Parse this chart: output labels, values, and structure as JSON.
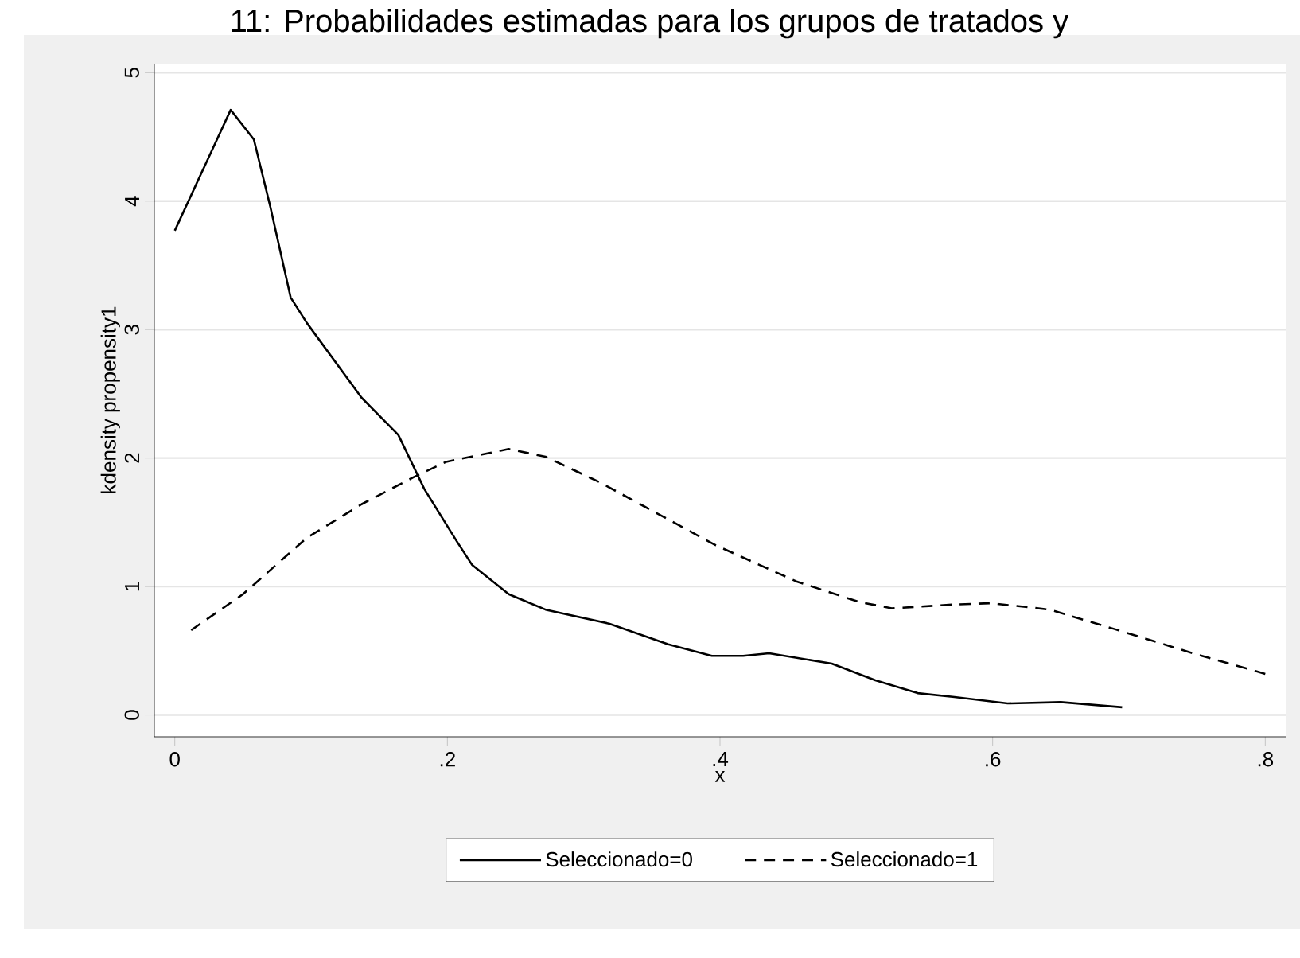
{
  "chart_data": {
    "type": "line",
    "title": "11: Probabilidades estimadas para los grupos de tratados y",
    "xlabel": "x",
    "ylabel": "kdensity propensity1",
    "xlim": [
      -0.015,
      0.815
    ],
    "ylim": [
      -0.17,
      5.07
    ],
    "xticks": [
      {
        "value": 0,
        "label": "0"
      },
      {
        "value": 0.2,
        "label": ".2"
      },
      {
        "value": 0.4,
        "label": ".4"
      },
      {
        "value": 0.6,
        "label": ".6"
      },
      {
        "value": 0.8,
        "label": ".8"
      }
    ],
    "yticks": [
      0,
      1,
      2,
      3,
      4,
      5
    ],
    "grid": "y",
    "legend": "bottom",
    "series": [
      {
        "name": "Seleccionado=0",
        "color": "#000000",
        "line_style": "solid",
        "x": [
          0.0,
          0.041,
          0.058,
          0.07,
          0.085,
          0.097,
          0.137,
          0.164,
          0.183,
          0.207,
          0.218,
          0.245,
          0.272,
          0.319,
          0.362,
          0.394,
          0.417,
          0.436,
          0.482,
          0.514,
          0.545,
          0.572,
          0.611,
          0.65,
          0.695
        ],
        "values": [
          3.77,
          4.71,
          4.48,
          3.96,
          3.25,
          3.05,
          2.47,
          2.18,
          1.76,
          1.35,
          1.17,
          0.94,
          0.82,
          0.71,
          0.55,
          0.46,
          0.46,
          0.48,
          0.4,
          0.27,
          0.17,
          0.14,
          0.09,
          0.1,
          0.06
        ]
      },
      {
        "name": "Seleccionado=1",
        "color": "#000000",
        "line_style": "dashed",
        "x": [
          0.012,
          0.05,
          0.097,
          0.137,
          0.175,
          0.199,
          0.245,
          0.272,
          0.312,
          0.345,
          0.397,
          0.456,
          0.502,
          0.526,
          0.572,
          0.599,
          0.642,
          0.689,
          0.747,
          0.8
        ],
        "values": [
          0.66,
          0.94,
          1.38,
          1.64,
          1.85,
          1.97,
          2.07,
          2.01,
          1.81,
          1.62,
          1.32,
          1.04,
          0.88,
          0.83,
          0.86,
          0.87,
          0.82,
          0.67,
          0.48,
          0.32
        ]
      }
    ]
  }
}
